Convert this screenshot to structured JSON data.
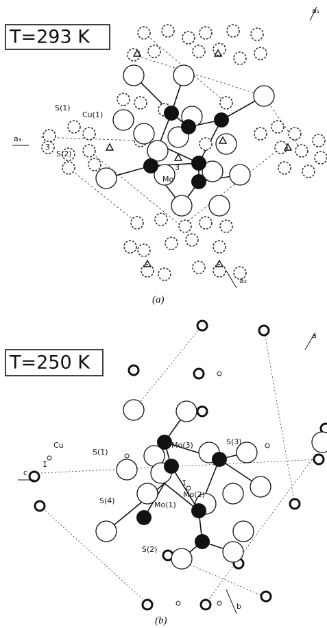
{
  "panels": [
    {
      "temperature": "T=293 K",
      "caption": "(a)",
      "atom_labels": [
        "Cu(1)",
        "S(1)",
        "S(2)",
        "Mo"
      ],
      "axis_labels": [
        "a₁",
        "a₃",
        "a₂"
      ],
      "symmetry_labels": [
        "3̄",
        "3̄"
      ]
    },
    {
      "temperature": "T=250 K",
      "caption": "(b)",
      "atom_labels": [
        "Cu",
        "S(1)",
        "S(3)",
        "S(4)",
        "S(2)",
        "Mo(3)",
        "Mo(2)",
        "Mo(1)"
      ],
      "axis_labels": [
        "a",
        "c",
        "b"
      ],
      "symmetry_labels": [
        "1̄",
        "1̄"
      ]
    }
  ]
}
